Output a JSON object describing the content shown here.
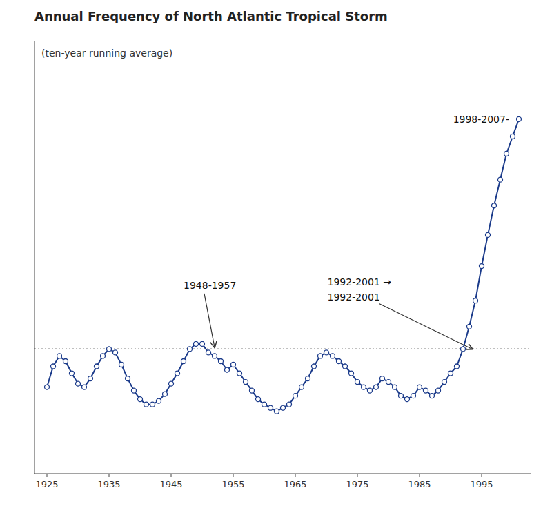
{
  "chart_data": {
    "type": "line",
    "title": "Annual Frequency of North Atlantic Tropical Storm",
    "subtitle": "(ten-year running average)",
    "x": [
      1925,
      1926,
      1927,
      1928,
      1929,
      1930,
      1931,
      1932,
      1933,
      1934,
      1935,
      1936,
      1937,
      1938,
      1939,
      1940,
      1941,
      1942,
      1943,
      1944,
      1945,
      1946,
      1947,
      1948,
      1949,
      1950,
      1951,
      1952,
      1953,
      1954,
      1955,
      1956,
      1957,
      1958,
      1959,
      1960,
      1961,
      1962,
      1963,
      1964,
      1965,
      1966,
      1967,
      1968,
      1969,
      1970,
      1971,
      1972,
      1973,
      1974,
      1975,
      1976,
      1977,
      1978,
      1979,
      1980,
      1981,
      1982,
      1983,
      1984,
      1985,
      1986,
      1987,
      1988,
      1989,
      1990,
      1991,
      1992,
      1993,
      1994,
      1995,
      1996,
      1997,
      1998,
      1999,
      2000,
      2001
    ],
    "values": [
      8.0,
      9.2,
      9.8,
      9.5,
      8.8,
      8.2,
      8.0,
      8.5,
      9.2,
      9.8,
      10.2,
      10.0,
      9.3,
      8.5,
      7.8,
      7.3,
      7.0,
      7.0,
      7.2,
      7.6,
      8.2,
      8.8,
      9.5,
      10.2,
      10.5,
      10.5,
      10.0,
      9.8,
      9.5,
      9.0,
      9.3,
      8.8,
      8.3,
      7.8,
      7.3,
      7.0,
      6.8,
      6.6,
      6.8,
      7.0,
      7.5,
      8.0,
      8.5,
      9.2,
      9.8,
      10.0,
      9.8,
      9.5,
      9.2,
      8.8,
      8.3,
      8.0,
      7.8,
      8.0,
      8.5,
      8.3,
      8.0,
      7.5,
      7.3,
      7.5,
      8.0,
      7.8,
      7.5,
      7.8,
      8.3,
      8.8,
      9.2,
      10.2,
      11.5,
      13.0,
      15.0,
      16.8,
      18.5,
      20.0,
      21.5,
      22.5,
      23.5
    ],
    "color": "#1a3a8a",
    "marker": "circle",
    "reference_y": 10.2,
    "annotations": [
      {
        "text": "1948-1957",
        "x": 1952,
        "y": 10.3
      },
      {
        "text": "1992-2001",
        "x": 1993.5,
        "y": 10.2
      },
      {
        "text": "1992-2001 →"
      },
      {
        "text": "1998-2007-"
      }
    ],
    "xlim": [
      1923,
      2003
    ],
    "ylim": [
      3,
      28
    ],
    "xticks": [
      1925,
      1935,
      1945,
      1955,
      1965,
      1975,
      1985,
      1995
    ],
    "tick_labels": "x",
    "grid": false
  }
}
